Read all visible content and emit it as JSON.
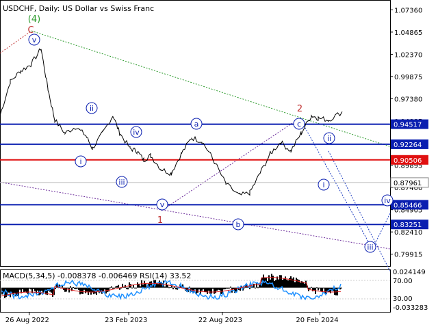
{
  "header": {
    "title": "USDCHF, Daily:  US Dollar vs Swiss Franc"
  },
  "indicator": {
    "label": "MACD(5,34,5) -0.008378 -0.006469 RSI(14) 33.52",
    "axis_labels": [
      "0.024149",
      "70.00",
      "30.00",
      "-0.033283"
    ]
  },
  "chart_data": [
    {
      "type": "line",
      "title": "USDCHF, Daily:  US Dollar vs Swiss Franc",
      "x_ticks": [
        "26 Aug 2022",
        "23 Feb 2023",
        "22 Aug 2023",
        "20 Feb 2024"
      ],
      "y_ticks": [
        1.0736,
        1.04865,
        1.0237,
        0.99875,
        0.9738,
        0.94885,
        0.9239,
        0.89895,
        0.874,
        0.84905,
        0.8241,
        0.79915
      ],
      "y_tick_labels": [
        "1.07360",
        "1.04865",
        "1.02370",
        "0.99875",
        "0.97380",
        "0.94885",
        "0.92390",
        "0.89895",
        "0.87400",
        "0.84905",
        "0.82410",
        "0.79915"
      ],
      "ylim": [
        0.7858,
        1.0847
      ],
      "current_price": 0.87961,
      "current_price_label": "0.87961",
      "levels": [
        {
          "value": 0.94517,
          "label": "0.94517",
          "color": "#0a1fb0"
        },
        {
          "value": 0.92264,
          "label": "0.92264",
          "color": "#0a1fb0"
        },
        {
          "value": 0.90506,
          "label": "0.90506",
          "color": "#e01010"
        },
        {
          "value": 0.85466,
          "label": "0.85466",
          "color": "#0a1fb0"
        },
        {
          "value": 0.83251,
          "label": "0.83251",
          "color": "#0a1fb0"
        }
      ],
      "price_path_anchors": [
        [
          0,
          0.955
        ],
        [
          0.03,
          0.993
        ],
        [
          0.06,
          1.005
        ],
        [
          0.09,
          1.012
        ],
        [
          0.12,
          1.03
        ],
        [
          0.14,
          0.985
        ],
        [
          0.16,
          0.95
        ],
        [
          0.19,
          0.935
        ],
        [
          0.22,
          0.942
        ],
        [
          0.25,
          0.933
        ],
        [
          0.27,
          0.918
        ],
        [
          0.3,
          0.935
        ],
        [
          0.33,
          0.955
        ],
        [
          0.35,
          0.935
        ],
        [
          0.38,
          0.918
        ],
        [
          0.4,
          0.915
        ],
        [
          0.42,
          0.905
        ],
        [
          0.44,
          0.91
        ],
        [
          0.47,
          0.895
        ],
        [
          0.5,
          0.89
        ],
        [
          0.53,
          0.912
        ],
        [
          0.56,
          0.93
        ],
        [
          0.59,
          0.926
        ],
        [
          0.62,
          0.908
        ],
        [
          0.66,
          0.878
        ],
        [
          0.7,
          0.865
        ],
        [
          0.73,
          0.868
        ],
        [
          0.76,
          0.89
        ],
        [
          0.79,
          0.912
        ],
        [
          0.82,
          0.925
        ],
        [
          0.85,
          0.915
        ],
        [
          0.88,
          0.935
        ],
        [
          0.91,
          0.955
        ],
        [
          0.93,
          0.952
        ],
        [
          0.96,
          0.95
        ],
        [
          1.0,
          0.959
        ]
      ],
      "wave_labels": [
        {
          "text": "(4)",
          "color": "#2a9a2a"
        },
        {
          "text": "C",
          "color": "#c03030"
        },
        {
          "text": "v",
          "color": "#0a1fb0"
        },
        {
          "text": "ii",
          "color": "#0a1fb0"
        },
        {
          "text": "iv",
          "color": "#0a1fb0"
        },
        {
          "text": "i",
          "color": "#0a1fb0"
        },
        {
          "text": "iii",
          "color": "#0a1fb0"
        },
        {
          "text": "v",
          "color": "#0a1fb0"
        },
        {
          "text": "1",
          "color": "#c03030"
        },
        {
          "text": "a",
          "color": "#0a1fb0"
        },
        {
          "text": "b",
          "color": "#0a1fb0"
        },
        {
          "text": "c",
          "color": "#0a1fb0"
        },
        {
          "text": "2",
          "color": "#c03030"
        },
        {
          "text": "ii",
          "color": "#0a1fb0"
        },
        {
          "text": "i",
          "color": "#0a1fb0"
        },
        {
          "text": "iii",
          "color": "#0a1fb0"
        },
        {
          "text": "iv",
          "color": "#0a1fb0"
        }
      ]
    },
    {
      "type": "bar",
      "title": "MACD(5,34,5) -0.008378 -0.006469 RSI(14) 33.52",
      "ylim": [
        -0.033283,
        0.024149
      ],
      "rsi_levels": [
        70,
        30
      ],
      "macd_color": "#000000",
      "rsi_color": "#1e90ff",
      "signal_color": "#e02020"
    }
  ],
  "colors": {
    "level_blue": "#0a1fb0",
    "level_red": "#e01010",
    "trend_green": "#2a9a2a",
    "trend_purple": "#6a2a9a",
    "trend_red": "#c03030",
    "trend_blue": "#1a3ac0",
    "label_green": "#2a9a2a",
    "label_red": "#c03030"
  }
}
